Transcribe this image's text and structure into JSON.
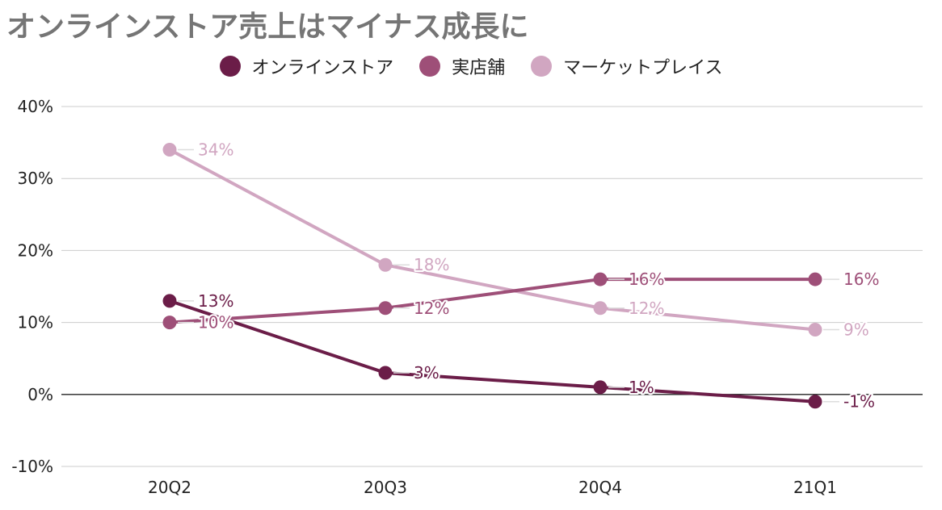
{
  "chart_title": "オンラインストア売上はマイナス成長に",
  "chart_data": {
    "type": "line",
    "title": "オンラインストア売上はマイナス成長に",
    "categories": [
      "20Q2",
      "20Q3",
      "20Q4",
      "21Q1"
    ],
    "ylim": [
      -10,
      40
    ],
    "yticks": [
      "-10%",
      "0%",
      "10%",
      "20%",
      "30%",
      "40%"
    ],
    "ytick_values": [
      -10,
      0,
      10,
      20,
      30,
      40
    ],
    "grid": true,
    "legend_position": "top-center",
    "series": [
      {
        "name": "オンラインストア",
        "color": "#6b1d48",
        "values": [
          13,
          3,
          1,
          -1
        ],
        "labels": [
          "13%",
          "3%",
          "1%",
          "-1%"
        ]
      },
      {
        "name": "実店舗",
        "color": "#9e4f78",
        "values": [
          10,
          12,
          16,
          16
        ],
        "labels": [
          "10%",
          "12%",
          "16%",
          "16%"
        ]
      },
      {
        "name": "マーケットプレイス",
        "color": "#d1a6c1",
        "values": [
          34,
          18,
          12,
          9
        ],
        "labels": [
          "34%",
          "18%",
          "12%",
          "9%"
        ]
      }
    ]
  }
}
